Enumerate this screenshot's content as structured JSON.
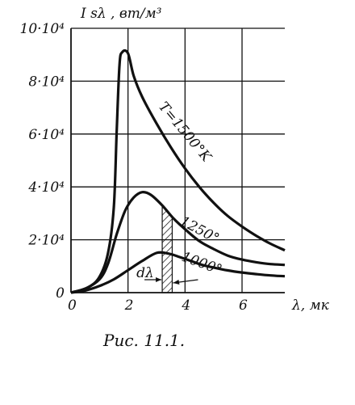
{
  "chart_data": {
    "type": "line",
    "ylabel": "I sλ , вт/м³",
    "xlabel": "λ, мк",
    "caption": "Рис. 11.1.",
    "xlim": [
      0,
      7.5
    ],
    "ylim": [
      0,
      100000
    ],
    "x_ticks": [
      {
        "value": 0,
        "label": "0"
      },
      {
        "value": 2,
        "label": "2"
      },
      {
        "value": 4,
        "label": "4"
      },
      {
        "value": 6,
        "label": "6"
      }
    ],
    "y_ticks": [
      {
        "value": 0,
        "label": "0"
      },
      {
        "value": 20000,
        "label": "2·10⁴"
      },
      {
        "value": 40000,
        "label": "4·10⁴"
      },
      {
        "value": 60000,
        "label": "6·10⁴"
      },
      {
        "value": 80000,
        "label": "8·10⁴"
      },
      {
        "value": 100000,
        "label": "10·10⁴"
      }
    ],
    "grid": true,
    "series": [
      {
        "name": "T=1500°K",
        "x": [
          0,
          0.6,
          1.0,
          1.3,
          1.5,
          1.6,
          1.7,
          1.8,
          2.0,
          2.2,
          2.5,
          3.0,
          3.5,
          4.0,
          4.5,
          5.0,
          5.5,
          6.0,
          6.5,
          7.0,
          7.5
        ],
        "y": [
          0,
          2000,
          6000,
          15000,
          32000,
          60000,
          86000,
          91000,
          90500,
          82000,
          74000,
          64000,
          55000,
          47000,
          40000,
          34000,
          29000,
          25000,
          21500,
          18500,
          16000
        ]
      },
      {
        "name": "1250°",
        "x": [
          0,
          0.5,
          1.0,
          1.3,
          1.6,
          1.9,
          2.2,
          2.5,
          2.8,
          3.2,
          3.6,
          4.0,
          4.5,
          5.0,
          5.5,
          6.0,
          6.5,
          7.0,
          7.5
        ],
        "y": [
          0,
          1500,
          5000,
          11000,
          22000,
          31000,
          36000,
          38000,
          37000,
          33000,
          28000,
          24000,
          19500,
          16500,
          14000,
          12500,
          11500,
          10800,
          10500
        ]
      },
      {
        "name": "1000°",
        "x": [
          0,
          0.5,
          1.0,
          1.5,
          2.0,
          2.5,
          3.0,
          3.4,
          3.8,
          4.2,
          4.6,
          5.0,
          5.5,
          6.0,
          6.5,
          7.0,
          7.5
        ],
        "y": [
          0,
          800,
          2500,
          5000,
          8500,
          12000,
          15000,
          14800,
          13500,
          12000,
          10500,
          9500,
          8400,
          7600,
          7000,
          6500,
          6200
        ]
      }
    ],
    "annotations": [
      {
        "text": "dλ",
        "x_from": 3.2,
        "x_to": 3.55
      }
    ]
  }
}
